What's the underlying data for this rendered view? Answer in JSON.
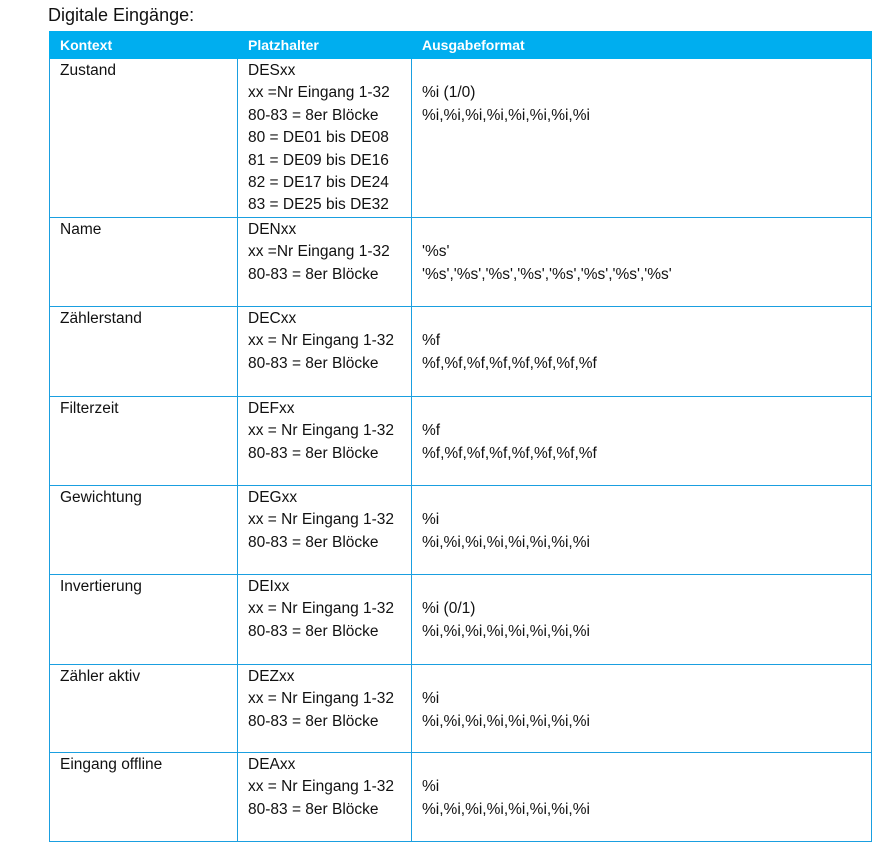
{
  "title": "Digitale Eingänge:",
  "headers": [
    "Kontext",
    "Platzhalter",
    "Ausgabeformat"
  ],
  "rows": [
    {
      "context": "Zustand",
      "placeholder": [
        "DESxx",
        "xx =Nr Eingang 1-32",
        "80-83 = 8er Blöcke",
        "80 = DE01 bis DE08",
        "81 = DE09 bis DE16",
        "82 = DE17 bis DE24",
        "83 = DE25 bis DE32"
      ],
      "format": [
        "%i (1/0)",
        "%i,%i,%i,%i,%i,%i,%i,%i"
      ]
    },
    {
      "context": "Name",
      "placeholder": [
        "DENxx",
        "xx =Nr Eingang 1-32",
        "80-83 = 8er Blöcke"
      ],
      "format": [
        "'%s'",
        "'%s','%s','%s','%s','%s','%s','%s','%s'"
      ]
    },
    {
      "context": "Zählerstand",
      "placeholder": [
        "DECxx",
        "xx = Nr Eingang 1-32",
        "80-83 = 8er Blöcke"
      ],
      "format": [
        "%f",
        "%f,%f,%f,%f,%f,%f,%f,%f"
      ]
    },
    {
      "context": "Filterzeit",
      "placeholder": [
        "DEFxx",
        "xx = Nr Eingang 1-32",
        "80-83 = 8er Blöcke"
      ],
      "format": [
        "%f",
        "%f,%f,%f,%f,%f,%f,%f,%f"
      ]
    },
    {
      "context": "Gewichtung",
      "placeholder": [
        "DEGxx",
        "xx = Nr Eingang 1-32",
        "80-83 = 8er Blöcke"
      ],
      "format": [
        "%i",
        "%i,%i,%i,%i,%i,%i,%i,%i"
      ]
    },
    {
      "context": "Invertierung",
      "placeholder": [
        "DEIxx",
        "xx = Nr Eingang 1-32",
        "80-83 = 8er Blöcke"
      ],
      "format": [
        "%i (0/1)",
        "%i,%i,%i,%i,%i,%i,%i,%i"
      ]
    },
    {
      "context": "Zähler aktiv",
      "placeholder": [
        "DEZxx",
        "xx = Nr Eingang 1-32",
        "80-83 = 8er Blöcke"
      ],
      "format": [
        "%i",
        "%i,%i,%i,%i,%i,%i,%i,%i"
      ]
    },
    {
      "context": "Eingang offline",
      "placeholder": [
        "DEAxx",
        "xx = Nr Eingang 1-32",
        "80-83 = 8er Blöcke"
      ],
      "format": [
        "%i",
        "%i,%i,%i,%i,%i,%i,%i,%i"
      ]
    }
  ],
  "colors": {
    "header_bg": "#00aeef",
    "border": "#1a9fe0"
  }
}
